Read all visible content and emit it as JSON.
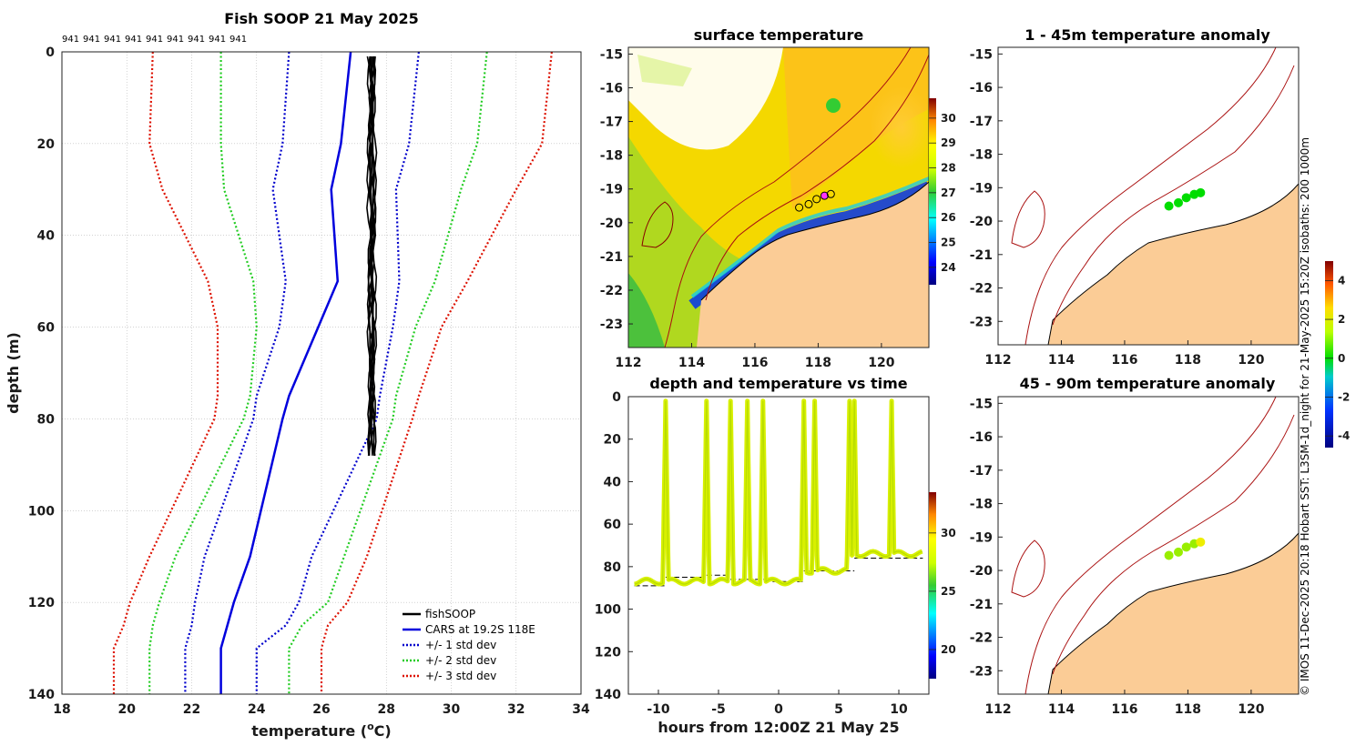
{
  "credit": "© IMOS 11-Dec-2025 20:18 Hobart SST: L3SM-1d_night for 21-May-2025 15:20Z isobaths: 200  1000m",
  "chart_data": [
    {
      "id": "profile",
      "type": "line",
      "title": "Fish SOOP 21 May 2025",
      "top_labels": [
        "941",
        "941",
        "941",
        "941",
        "941",
        "941",
        "941",
        "941",
        "941"
      ],
      "xlabel": "temperature (",
      "xlabel_sup": "o",
      "xlabel_end": "C)",
      "ylabel": "depth (m)",
      "xlim": [
        18,
        34
      ],
      "ylim": [
        0,
        140
      ],
      "xticks": [
        18,
        20,
        22,
        24,
        26,
        28,
        30,
        32,
        34
      ],
      "yticks": [
        0,
        20,
        40,
        60,
        80,
        100,
        120,
        140
      ],
      "legend": [
        "fishSOOP",
        "CARS at 19.2S 118E",
        "+/- 1 std dev",
        "+/- 2 std dev",
        "+/- 3 std dev"
      ],
      "colors": {
        "fish": "#000000",
        "cars": "#0000dd",
        "sd1": "#0000cc",
        "sd2": "#22cc22",
        "sd3": "#dd1100"
      },
      "depths": [
        0,
        20,
        30,
        50,
        60,
        75,
        80,
        110,
        120,
        125,
        130,
        140
      ],
      "cars": [
        26.9,
        26.6,
        26.3,
        26.5,
        25.9,
        25.0,
        24.8,
        23.8,
        23.3,
        23.1,
        22.9,
        22.9
      ],
      "sd1_low": [
        25.0,
        24.8,
        24.5,
        24.9,
        24.7,
        24.0,
        23.9,
        22.4,
        22.1,
        22.0,
        21.8,
        21.8
      ],
      "sd1_high": [
        29.0,
        28.7,
        28.3,
        28.4,
        28.2,
        27.8,
        27.7,
        25.7,
        25.3,
        24.9,
        24.0,
        24.0
      ],
      "sd2_low": [
        22.9,
        22.9,
        23.0,
        23.9,
        24.0,
        23.8,
        23.6,
        21.5,
        21.0,
        20.8,
        20.7,
        20.7
      ],
      "sd2_high": [
        31.1,
        30.8,
        30.3,
        29.5,
        28.9,
        28.3,
        28.2,
        26.7,
        26.2,
        25.4,
        25.0,
        25.0
      ],
      "sd3_low": [
        20.8,
        20.7,
        21.1,
        22.5,
        22.8,
        22.8,
        22.7,
        20.7,
        20.1,
        19.9,
        19.6,
        19.6
      ],
      "sd3_high": [
        33.1,
        32.8,
        32.0,
        30.5,
        29.7,
        29.0,
        28.8,
        27.4,
        26.8,
        26.2,
        26.0,
        26.0
      ]
    },
    {
      "id": "sst_map",
      "type": "heatmap",
      "title": "surface temperature",
      "xlim": [
        112,
        121.5
      ],
      "ylim": [
        -23.7,
        -14.8
      ],
      "xticks": [
        112,
        114,
        116,
        118,
        120
      ],
      "yticks": [
        -15,
        -16,
        -17,
        -18,
        -19,
        -20,
        -21,
        -22,
        -23
      ],
      "colorbar_ticks": [
        24,
        25,
        26,
        27,
        28,
        29,
        30
      ],
      "colorbar_range": [
        23.3,
        30.8
      ]
    },
    {
      "id": "depth_time",
      "type": "scatter",
      "title": "depth and temperature vs time",
      "xlabel": "hours from 12:00Z 21 May 25",
      "xlim": [
        -12.5,
        12.5
      ],
      "ylim": [
        0,
        140
      ],
      "xticks": [
        -10,
        -5,
        0,
        5,
        10
      ],
      "yticks": [
        0,
        20,
        40,
        60,
        80,
        100,
        120,
        140
      ],
      "colorbar_ticks": [
        20,
        25,
        30
      ],
      "colorbar_range": [
        17.5,
        33.5
      ],
      "casts_hours": [
        -9.4,
        -6.0,
        -4.0,
        -2.6,
        -1.3,
        2.1,
        3.0,
        5.9,
        6.3,
        9.4
      ]
    },
    {
      "id": "anom_upper",
      "type": "scatter",
      "title": "1 - 45m temperature anomaly",
      "xlim": [
        112,
        121.5
      ],
      "ylim": [
        -23.7,
        -14.8
      ],
      "xticks": [
        112,
        114,
        116,
        118,
        120
      ],
      "yticks": [
        -15,
        -16,
        -17,
        -18,
        -19,
        -20,
        -21,
        -22,
        -23
      ],
      "points": [
        {
          "lon": 117.4,
          "lat": -19.55,
          "anom": 0.1
        },
        {
          "lon": 117.7,
          "lat": -19.45,
          "anom": 0.2
        },
        {
          "lon": 117.95,
          "lat": -19.3,
          "anom": 0.2
        },
        {
          "lon": 118.2,
          "lat": -19.2,
          "anom": 0.3
        },
        {
          "lon": 118.4,
          "lat": -19.15,
          "anom": 0.3
        }
      ]
    },
    {
      "id": "anom_lower",
      "type": "scatter",
      "title": "45 - 90m temperature anomaly",
      "xlim": [
        112,
        121.5
      ],
      "ylim": [
        -23.7,
        -14.8
      ],
      "xticks": [
        112,
        114,
        116,
        118,
        120
      ],
      "yticks": [
        -15,
        -16,
        -17,
        -18,
        -19,
        -20,
        -21,
        -22,
        -23
      ],
      "points": [
        {
          "lon": 117.4,
          "lat": -19.55,
          "anom": 0.6
        },
        {
          "lon": 117.7,
          "lat": -19.45,
          "anom": 1.0
        },
        {
          "lon": 117.95,
          "lat": -19.3,
          "anom": 1.3
        },
        {
          "lon": 118.2,
          "lat": -19.2,
          "anom": 1.5
        },
        {
          "lon": 118.4,
          "lat": -19.15,
          "anom": 1.6
        }
      ]
    }
  ],
  "anom_colorbar": {
    "ticks": [
      4,
      2,
      0,
      -2,
      -4
    ],
    "range": [
      -4.6,
      5.0
    ]
  }
}
